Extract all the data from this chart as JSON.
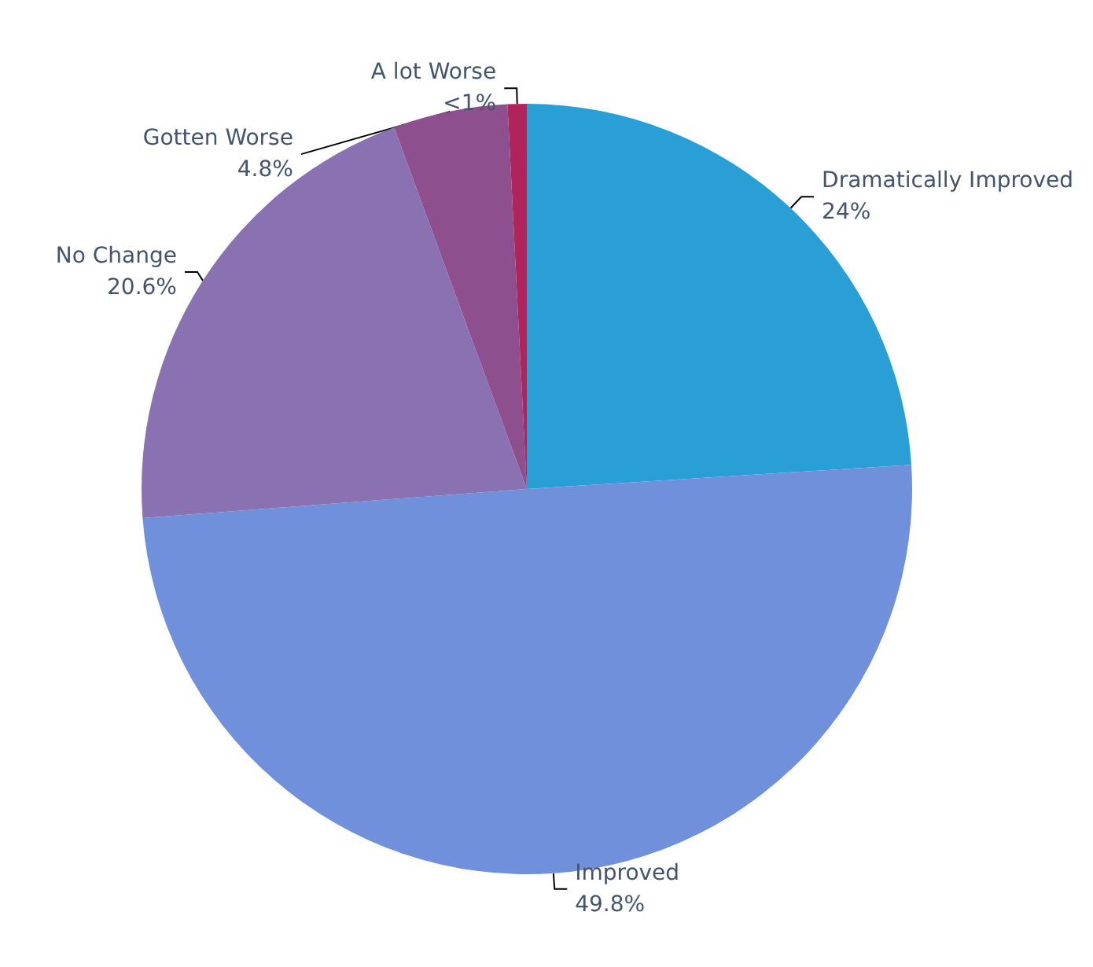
{
  "chart_data": {
    "type": "pie",
    "categories": [
      "Dramatically Improved",
      "Improved",
      "No Change",
      "Gotten Worse",
      "A lot Worse"
    ],
    "values": [
      24,
      49.8,
      20.6,
      4.8,
      0.8
    ],
    "value_labels": [
      "24%",
      "49.8%",
      "20.6%",
      "4.8%",
      "<1%"
    ],
    "colors": [
      "#2a9fd6",
      "#7090db",
      "#8a72b2",
      "#8d4f8d",
      "#b0245c"
    ]
  }
}
